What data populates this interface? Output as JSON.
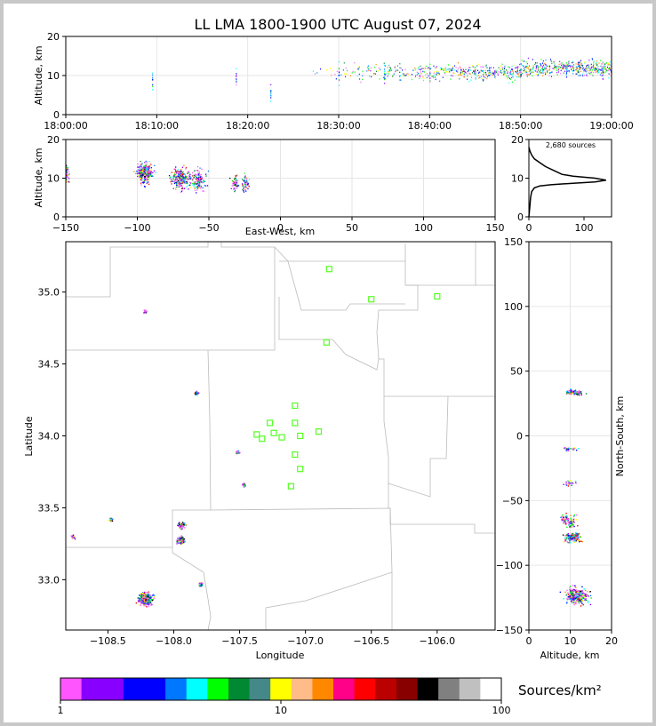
{
  "chart_data": [
    {
      "type": "scatter",
      "panel": "time-altitude",
      "title": "LL LMA 1800-1900 UTC August 07, 2024",
      "ylabel": "Altitude, km",
      "xlabel": "",
      "xlim": [
        "18:00:00",
        "19:00:00"
      ],
      "ylim": [
        0,
        20
      ],
      "xticks": [
        "18:00:00",
        "18:10:00",
        "18:20:00",
        "18:30:00",
        "18:40:00",
        "18:50:00",
        "19:00:00"
      ],
      "yticks": [
        "0",
        "10",
        "20"
      ],
      "grid": true,
      "sources": [
        {
          "t_min": 9.5,
          "alt": 9.0
        },
        {
          "t_min": 18.7,
          "alt": 9.5
        },
        {
          "t_min": 22.5,
          "alt": 6.0
        },
        {
          "t_min": 30.0,
          "alt": 11.0
        },
        {
          "t_min": 35.0,
          "alt": 10.5
        },
        {
          "t_min": 40.0,
          "alt": 11.0
        },
        {
          "t_min": 45.0,
          "alt": 10.0
        },
        {
          "t_min": 50.0,
          "alt": 11.5
        },
        {
          "t_min": 55.0,
          "alt": 12.0
        },
        {
          "t_min": 59.0,
          "alt": 11.0
        }
      ]
    },
    {
      "type": "scatter",
      "panel": "east-west-altitude",
      "xlabel": "East-West, km",
      "ylabel": "Altitude, km",
      "xlim": [
        -150,
        150
      ],
      "ylim": [
        0,
        20
      ],
      "xticks": [
        "−150",
        "−100",
        "−50",
        "0",
        "50",
        "100",
        "150"
      ],
      "yticks": [
        "0",
        "10",
        "20"
      ],
      "grid": true,
      "clusters": [
        {
          "x": -150,
          "alt": 11.5
        },
        {
          "x": -95,
          "alt": 11.5
        },
        {
          "x": -70,
          "alt": 10.0
        },
        {
          "x": -58,
          "alt": 9.5
        },
        {
          "x": -32,
          "alt": 9.0
        },
        {
          "x": -25,
          "alt": 9.0
        }
      ]
    },
    {
      "type": "line",
      "panel": "altitude-histogram",
      "annotation": "2,680 sources",
      "xlim": [
        0,
        150
      ],
      "ylim": [
        0,
        20
      ],
      "xticks": [
        "0",
        "100"
      ],
      "yticks": [
        "0",
        "10",
        "20"
      ],
      "x": [
        0,
        2,
        3,
        5,
        10,
        20,
        40,
        80,
        120,
        140,
        120,
        80,
        60,
        45,
        30,
        20,
        10,
        5,
        2,
        0
      ],
      "y": [
        0,
        3,
        5,
        6.5,
        7.5,
        8.0,
        8.3,
        8.7,
        9.0,
        9.5,
        10.0,
        10.5,
        11.0,
        12.0,
        13.0,
        14.0,
        15.0,
        16.0,
        17.0,
        18.0
      ]
    },
    {
      "type": "scatter",
      "panel": "plan-view",
      "xlabel": "Longitude",
      "ylabel": "Latitude",
      "xlim": [
        -108.82,
        -105.56
      ],
      "ylim": [
        32.65,
        35.35
      ],
      "xticks": [
        "−108.5",
        "−108.0",
        "−107.5",
        "−107.0",
        "−106.5",
        "−106.0"
      ],
      "yticks": [
        "33.0",
        "33.5",
        "34.0",
        "34.5",
        "35.0"
      ],
      "stations": [
        {
          "lon": -106.82,
          "lat": 35.16
        },
        {
          "lon": -106.5,
          "lat": 34.95
        },
        {
          "lon": -106.0,
          "lat": 34.97
        },
        {
          "lon": -106.84,
          "lat": 34.65
        },
        {
          "lon": -107.08,
          "lat": 34.21
        },
        {
          "lon": -107.27,
          "lat": 34.09
        },
        {
          "lon": -107.08,
          "lat": 34.09
        },
        {
          "lon": -107.37,
          "lat": 34.01
        },
        {
          "lon": -107.24,
          "lat": 34.02
        },
        {
          "lon": -107.18,
          "lat": 33.99
        },
        {
          "lon": -107.33,
          "lat": 33.98
        },
        {
          "lon": -107.04,
          "lat": 34.0
        },
        {
          "lon": -106.9,
          "lat": 34.03
        },
        {
          "lon": -107.08,
          "lat": 33.87
        },
        {
          "lon": -107.04,
          "lat": 33.77
        },
        {
          "lon": -107.11,
          "lat": 33.65
        }
      ],
      "clusters": [
        {
          "lon": -108.22,
          "lat": 32.87
        },
        {
          "lon": -107.95,
          "lat": 33.28
        },
        {
          "lon": -107.94,
          "lat": 33.38
        },
        {
          "lon": -107.8,
          "lat": 32.97
        },
        {
          "lon": -107.83,
          "lat": 34.3
        },
        {
          "lon": -108.77,
          "lat": 33.3
        },
        {
          "lon": -108.48,
          "lat": 33.42
        },
        {
          "lon": -107.47,
          "lat": 33.66
        },
        {
          "lon": -107.52,
          "lat": 33.89
        },
        {
          "lon": -108.22,
          "lat": 34.87
        }
      ]
    },
    {
      "type": "scatter",
      "panel": "altitude-north-south",
      "xlabel": "Altitude, km",
      "ylabel": "North-South, km",
      "xlim": [
        0,
        20
      ],
      "ylim": [
        -150,
        150
      ],
      "xticks": [
        "0",
        "10",
        "20"
      ],
      "yticks": [
        "−150",
        "−100",
        "−50",
        "0",
        "50",
        "100",
        "150"
      ],
      "clusters": [
        {
          "alt": 11,
          "y": 34
        },
        {
          "alt": 9.5,
          "y": -10
        },
        {
          "alt": 9.5,
          "y": -36
        },
        {
          "alt": 9.5,
          "y": -65
        },
        {
          "alt": 10.5,
          "y": -78
        },
        {
          "alt": 11.5,
          "y": -123
        }
      ]
    },
    {
      "type": "colorbar",
      "panel": "colorbar",
      "label": "Sources/km²",
      "scale": "log",
      "range": [
        1,
        100
      ],
      "ticks": [
        "1",
        "10",
        "100"
      ],
      "colors": [
        "#ff55ff",
        "#8800ff",
        "#8800ff",
        "#0000ff",
        "#0000ff",
        "#0077ff",
        "#00ffff",
        "#00ff00",
        "#008833",
        "#448888",
        "#ffff00",
        "#ffbb88",
        "#ff8800",
        "#ff0088",
        "#ff0000",
        "#bb0000",
        "#880000",
        "#000000",
        "#808080",
        "#c0c0c0",
        "#ffffff"
      ]
    }
  ]
}
